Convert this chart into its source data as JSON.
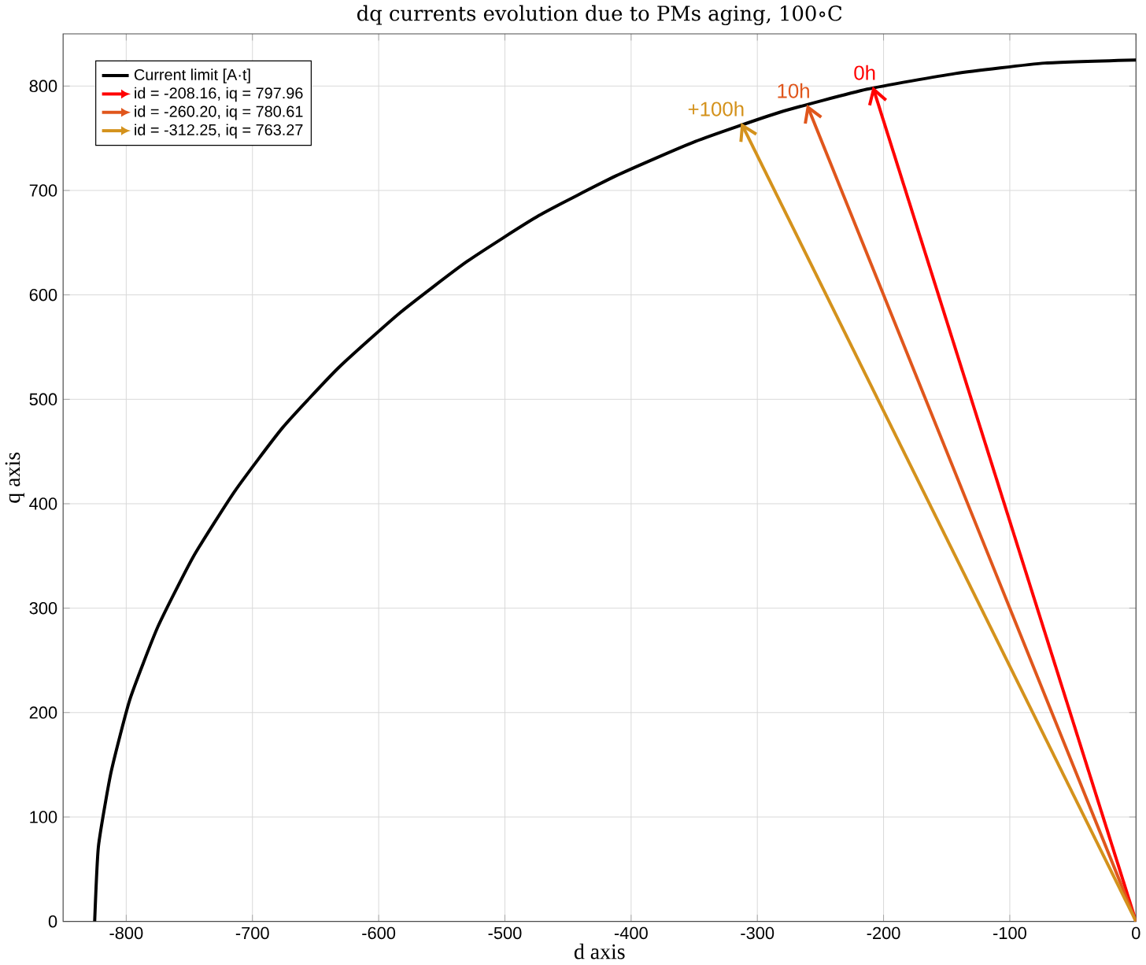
{
  "chart_data": {
    "type": "line",
    "title": "dq currents evolution due to PMs aging, 100∘C",
    "xlabel": "d axis",
    "ylabel": "q axis",
    "xlim": [
      -850,
      0
    ],
    "ylim": [
      0,
      850
    ],
    "xticks": [
      -800,
      -700,
      -600,
      -500,
      -400,
      -300,
      -200,
      -100,
      0
    ],
    "yticks": [
      0,
      100,
      200,
      300,
      400,
      500,
      600,
      700,
      800
    ],
    "grid": true,
    "legend": "top left",
    "marker": "none",
    "line_style": "solid",
    "series": [
      {
        "name": "Current limit [A·t]",
        "color": "#000000",
        "x": [
          0,
          -72,
          -143,
          -213,
          -282,
          -349,
          -412,
          -473,
          -530,
          -583,
          -632,
          -676,
          -714,
          -747,
          -775,
          -797,
          -812,
          -822,
          -825
        ],
        "values": [
          825,
          822,
          812,
          797,
          775,
          747,
          714,
          676,
          632,
          583,
          530,
          473,
          412,
          349,
          282,
          213,
          143,
          72,
          0
        ]
      },
      {
        "name": "id = -208.16, iq = 797.96",
        "color": "#ff0000",
        "x": [
          0,
          -208.16
        ],
        "values": [
          0,
          797.96
        ]
      },
      {
        "name": "id = -260.20, iq = 780.61",
        "color": "#e0561c",
        "x": [
          0,
          -260.2
        ],
        "values": [
          0,
          780.61
        ]
      },
      {
        "name": "id = -312.25, iq = 763.27",
        "color": "#d4921c",
        "x": [
          0,
          -312.25
        ],
        "values": [
          0,
          763.27
        ]
      }
    ],
    "annotations": [
      "0h",
      "10h",
      "+100h"
    ]
  }
}
